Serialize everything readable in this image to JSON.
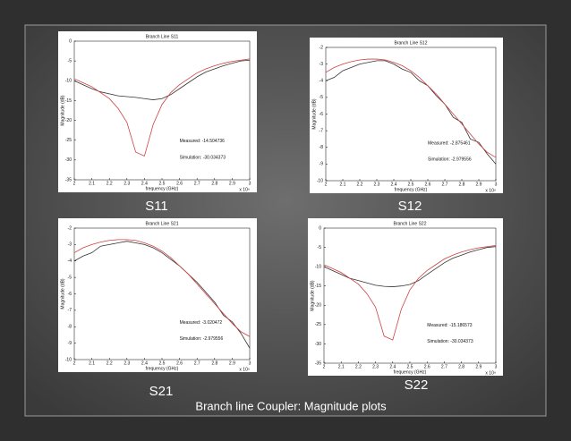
{
  "slide": {
    "labels": [
      "S11",
      "S12",
      "S21",
      "S22"
    ],
    "caption": "Branch line Coupler: Magnitude plots"
  },
  "chart_data": [
    {
      "type": "line",
      "title": "Branch Line S11",
      "x_label": "frequency (GHz)",
      "y_label": "Magnitude (dB)",
      "x_multiplier": "x 10⁹",
      "x": [
        2.0,
        2.05,
        2.1,
        2.15,
        2.2,
        2.25,
        2.3,
        2.35,
        2.4,
        2.45,
        2.5,
        2.55,
        2.6,
        2.65,
        2.7,
        2.75,
        2.8,
        2.85,
        2.9,
        2.95,
        3.0
      ],
      "series": [
        {
          "color": "#333333",
          "values": [
            -10,
            -11,
            -12,
            -12.8,
            -13.3,
            -13.8,
            -14,
            -14.2,
            -14.5,
            -14.8,
            -14.5,
            -13.5,
            -12,
            -10.5,
            -9,
            -7.8,
            -7,
            -6.2,
            -5.6,
            -5,
            -4.8
          ]
        },
        {
          "color": "#d04040",
          "values": [
            -9.5,
            -10.5,
            -11.5,
            -13,
            -14.5,
            -17,
            -20.5,
            -28,
            -29,
            -21,
            -16,
            -13,
            -11,
            -9.5,
            -8,
            -7,
            -6.2,
            -5.6,
            -5.1,
            -4.8,
            -4.5
          ]
        }
      ],
      "annotations": [
        "Measured: -14.504736",
        "Simulation: -30.034373"
      ],
      "xlim": [
        2,
        3
      ],
      "xticks": [
        2,
        2.1,
        2.2,
        2.3,
        2.4,
        2.5,
        2.6,
        2.7,
        2.8,
        2.9,
        3
      ],
      "ylim": [
        -35,
        0
      ],
      "yticks": [
        0,
        -5,
        -10,
        -15,
        -20,
        -25,
        -30,
        -35
      ]
    },
    {
      "type": "line",
      "title": "Branch Line S12",
      "x_label": "frequency (GHz)",
      "y_label": "Magnitude (dB)",
      "x_multiplier": "x 10⁹",
      "x": [
        2.0,
        2.05,
        2.1,
        2.15,
        2.2,
        2.25,
        2.3,
        2.35,
        2.4,
        2.45,
        2.5,
        2.55,
        2.6,
        2.65,
        2.7,
        2.75,
        2.8,
        2.85,
        2.9,
        2.95,
        3.0
      ],
      "series": [
        {
          "color": "#333333",
          "values": [
            -4,
            -3.8,
            -3.4,
            -3.2,
            -3,
            -2.9,
            -2.8,
            -2.8,
            -3,
            -3.3,
            -3.5,
            -4,
            -4.3,
            -4.9,
            -5.4,
            -6.2,
            -6.5,
            -7.5,
            -7.7,
            -8.4,
            -9
          ]
        },
        {
          "color": "#d04040",
          "values": [
            -3.5,
            -3.2,
            -3,
            -2.85,
            -2.75,
            -2.7,
            -2.7,
            -2.75,
            -2.9,
            -3.1,
            -3.4,
            -3.8,
            -4.3,
            -4.8,
            -5.4,
            -6,
            -6.6,
            -7.2,
            -7.8,
            -8.3,
            -8.6
          ]
        }
      ],
      "annotations": [
        "Measured: -2.875461",
        "Simulation: -2.979556"
      ],
      "xlim": [
        2,
        3
      ],
      "xticks": [
        2,
        2.1,
        2.2,
        2.3,
        2.4,
        2.5,
        2.6,
        2.7,
        2.8,
        2.9,
        3
      ],
      "ylim": [
        -10,
        -2
      ],
      "yticks": [
        -2,
        -3,
        -4,
        -5,
        -6,
        -7,
        -8,
        -9,
        -10
      ]
    },
    {
      "type": "line",
      "title": "Branch Line S21",
      "x_label": "frequency (GHz)",
      "y_label": "Magnitude (dB)",
      "x_multiplier": "x 10⁹",
      "x": [
        2.0,
        2.05,
        2.1,
        2.15,
        2.2,
        2.25,
        2.3,
        2.35,
        2.4,
        2.45,
        2.5,
        2.55,
        2.6,
        2.65,
        2.7,
        2.75,
        2.8,
        2.85,
        2.9,
        2.95,
        3.0
      ],
      "series": [
        {
          "color": "#333333",
          "values": [
            -4,
            -3.7,
            -3.5,
            -3.1,
            -3,
            -2.9,
            -2.8,
            -2.9,
            -3,
            -3.2,
            -3.5,
            -3.9,
            -4.3,
            -4.8,
            -5.3,
            -5.9,
            -6.5,
            -7.3,
            -7.7,
            -8.4,
            -9.3
          ]
        },
        {
          "color": "#d04040",
          "values": [
            -3.5,
            -3.2,
            -3,
            -2.85,
            -2.75,
            -2.7,
            -2.7,
            -2.75,
            -2.9,
            -3.1,
            -3.4,
            -3.8,
            -4.3,
            -4.8,
            -5.4,
            -6,
            -6.6,
            -7.2,
            -7.8,
            -8.3,
            -8.6
          ]
        }
      ],
      "annotations": [
        "Measured: -3.020472",
        "Simulation: -2.979556"
      ],
      "xlim": [
        2,
        3
      ],
      "xticks": [
        2,
        2.1,
        2.2,
        2.3,
        2.4,
        2.5,
        2.6,
        2.7,
        2.8,
        2.9,
        3
      ],
      "ylim": [
        -10,
        -2
      ],
      "yticks": [
        -2,
        -3,
        -4,
        -5,
        -6,
        -7,
        -8,
        -9,
        -10
      ]
    },
    {
      "type": "line",
      "title": "Branch Line S22",
      "x_label": "frequency (GHz)",
      "y_label": "Magnitude (dB)",
      "x_multiplier": "x 10⁹",
      "x": [
        2.0,
        2.05,
        2.1,
        2.15,
        2.2,
        2.25,
        2.3,
        2.35,
        2.4,
        2.45,
        2.5,
        2.55,
        2.6,
        2.65,
        2.7,
        2.75,
        2.8,
        2.85,
        2.9,
        2.95,
        3.0
      ],
      "series": [
        {
          "color": "#333333",
          "values": [
            -10,
            -11,
            -12,
            -13,
            -13.6,
            -14.2,
            -14.8,
            -15.1,
            -15.2,
            -15,
            -14.6,
            -13.6,
            -12,
            -10.5,
            -9,
            -7.8,
            -7,
            -6.2,
            -5.6,
            -5,
            -4.8
          ]
        },
        {
          "color": "#d04040",
          "values": [
            -9.5,
            -10.5,
            -11.5,
            -13,
            -14.5,
            -17,
            -20.5,
            -28,
            -29,
            -21,
            -16,
            -13,
            -11,
            -9.5,
            -8,
            -7,
            -6.2,
            -5.6,
            -5.1,
            -4.8,
            -4.5
          ]
        }
      ],
      "annotations": [
        "Measured: -15.186573",
        "Simulation: -30.034373"
      ],
      "xlim": [
        2,
        3
      ],
      "xticks": [
        2,
        2.1,
        2.2,
        2.3,
        2.4,
        2.5,
        2.6,
        2.7,
        2.8,
        2.9,
        3
      ],
      "ylim": [
        -35,
        0
      ],
      "yticks": [
        0,
        -5,
        -10,
        -15,
        -20,
        -25,
        -30,
        -35
      ]
    }
  ]
}
